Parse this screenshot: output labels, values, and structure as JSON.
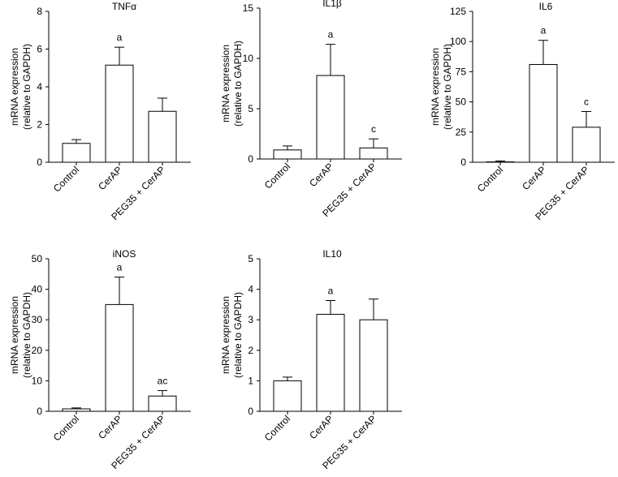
{
  "chart_data": [
    {
      "type": "bar",
      "title": "TNFα",
      "ylabel_line1": "mRNA expression",
      "ylabel_line2": "(relative to GAPDH)",
      "categories": [
        "Control",
        "CerAP",
        "PEG35 + CerAP"
      ],
      "values": [
        1.0,
        5.15,
        2.7
      ],
      "errors": [
        0.2,
        0.95,
        0.7
      ],
      "annotations": [
        "",
        "a",
        ""
      ],
      "ylim": [
        0,
        8
      ],
      "yticks": [
        0,
        2,
        4,
        6,
        8
      ]
    },
    {
      "type": "bar",
      "title": "IL1β",
      "ylabel_line1": "mRNA expression",
      "ylabel_line2": "(relative to GAPDH)",
      "categories": [
        "Control",
        "CerAP",
        "PEG35 + CerAP"
      ],
      "values": [
        0.9,
        8.3,
        1.1
      ],
      "errors": [
        0.4,
        3.1,
        0.9
      ],
      "annotations": [
        "",
        "a",
        "c"
      ],
      "ylim": [
        0,
        15
      ],
      "yticks": [
        0,
        5,
        10,
        15
      ]
    },
    {
      "type": "bar",
      "title": "IL6",
      "ylabel_line1": "mRNA expression",
      "ylabel_line2": "(relative to GAPDH)",
      "categories": [
        "Control",
        "CerAP",
        "PEG35 + CerAP"
      ],
      "values": [
        0.3,
        81,
        29
      ],
      "errors": [
        0.8,
        20,
        13
      ],
      "annotations": [
        "",
        "a",
        "c"
      ],
      "ylim": [
        0,
        125
      ],
      "yticks": [
        0,
        25,
        50,
        75,
        100,
        125
      ]
    },
    {
      "type": "bar",
      "title": "iNOS",
      "ylabel_line1": "mRNA expression",
      "ylabel_line2": "(relative to GAPDH)",
      "categories": [
        "Control",
        "CerAP",
        "PEG35 + CerAP"
      ],
      "values": [
        0.8,
        35,
        5
      ],
      "errors": [
        0.3,
        9,
        1.8
      ],
      "annotations": [
        "",
        "a",
        "ac"
      ],
      "ylim": [
        0,
        50
      ],
      "yticks": [
        0,
        10,
        20,
        30,
        40,
        50
      ]
    },
    {
      "type": "bar",
      "title": "IL10",
      "ylabel_line1": "mRNA expression",
      "ylabel_line2": "(relative to GAPDH)",
      "categories": [
        "Control",
        "CerAP",
        "PEG35 + CerAP"
      ],
      "values": [
        1.0,
        3.18,
        3.0
      ],
      "errors": [
        0.12,
        0.45,
        0.68
      ],
      "annotations": [
        "",
        "a",
        ""
      ],
      "ylim": [
        0,
        5
      ],
      "yticks": [
        0,
        1,
        2,
        3,
        4,
        5
      ]
    }
  ]
}
